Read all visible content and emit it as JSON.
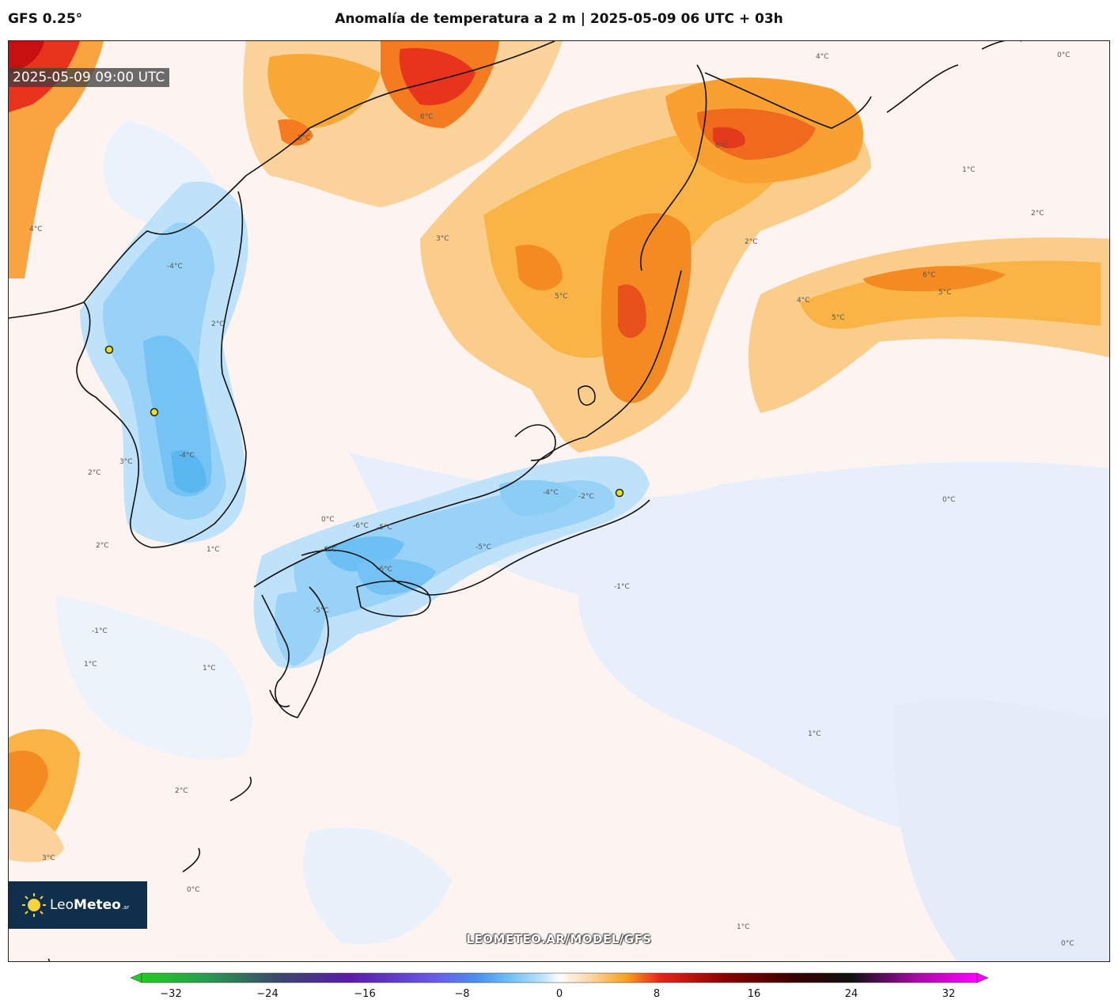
{
  "header": {
    "model": "GFS 0.25°",
    "title": "Anomalía de temperatura a 2 m | 2025-05-09 06 UTC + 03h"
  },
  "map": {
    "valid_time": "2025-05-09 09:00 UTC",
    "watermark": "LEOMETEO.AR/MODEL/GFS",
    "logo": {
      "brand_plain": "Leo",
      "brand_bold": "Meteo",
      "suffix": ".ar"
    },
    "contour_labels": {
      "pos6": "6°C",
      "pos5": "5°C",
      "pos4": "4°C",
      "pos3": "3°C",
      "pos2": "2°C",
      "pos1": "1°C",
      "zero": "0°C",
      "neg1": "-1°C",
      "neg2": "-2°C",
      "neg4": "-4°C",
      "neg5": "-5°C",
      "neg6": "-6°C"
    }
  },
  "colorbar": {
    "ticks": [
      "−32",
      "−24",
      "−16",
      "−8",
      "0",
      "8",
      "16",
      "24",
      "32"
    ],
    "colors": {
      "green": "#22cc22",
      "purple": "#5a1aa8",
      "blue": "#4aa8f0",
      "lightblue": "#bde3fb",
      "white": "#fdfdfd",
      "orange": "#f7a21c",
      "red": "#e8241c",
      "darkred": "#5a0000",
      "black": "#111111",
      "magenta": "#ff00ff"
    }
  }
}
